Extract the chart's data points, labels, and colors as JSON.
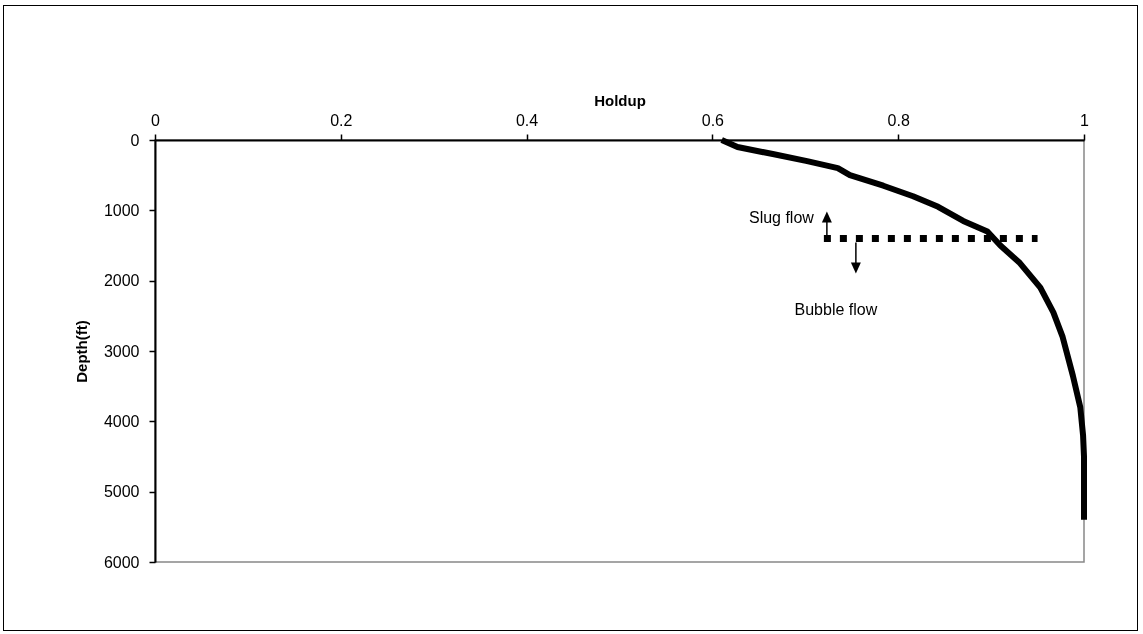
{
  "chart_data": {
    "type": "line",
    "xlabel": "Holdup",
    "ylabel": "Depth(ft)",
    "xlim": [
      0,
      1
    ],
    "xticks": [
      0,
      0.2,
      0.4,
      0.6,
      0.8,
      1
    ],
    "ylim": [
      6000,
      0
    ],
    "yticks": [
      0,
      1000,
      2000,
      3000,
      4000,
      5000,
      6000
    ],
    "grid": false,
    "marker": "none",
    "series": [
      {
        "color": "#000000",
        "line_style": "solid",
        "x": [
          0.61,
          0.627,
          0.665,
          0.702,
          0.735,
          0.748,
          0.784,
          0.816,
          0.843,
          0.87,
          0.896,
          0.91,
          0.931,
          0.953,
          0.967,
          0.977,
          0.988,
          0.996,
          0.999,
          1,
          1
        ],
        "values": [
          0,
          100,
          200,
          300,
          400,
          500,
          650,
          800,
          950,
          1150,
          1300,
          1500,
          1750,
          2100,
          2450,
          2800,
          3350,
          3800,
          4200,
          4500,
          5400
        ]
      },
      {
        "color": "#000000",
        "line_style": "dotted",
        "x": [
          0.72,
          0.95
        ],
        "values": [
          1400,
          1400
        ]
      }
    ],
    "annotations": [
      "Slug flow",
      "Bubble flow"
    ]
  }
}
